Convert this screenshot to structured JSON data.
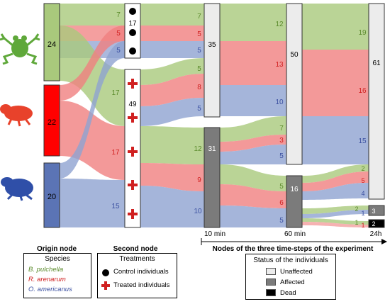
{
  "colors": {
    "green": "#a9c97c",
    "red": "#f07f7f",
    "blue": "#8fa2d1",
    "green_node": "#a9c97c",
    "red_node": "#ff0000",
    "blue_node": "#5b74b5",
    "unaffected": "#ececec",
    "affected": "#7b7b7b",
    "dead": "#000000",
    "green_text": "#5a8a2a",
    "red_text": "#d02020",
    "blue_text": "#3a4fa0"
  },
  "origin_nodes": [
    {
      "label": "24",
      "species": "green"
    },
    {
      "label": "22",
      "species": "red"
    },
    {
      "label": "20",
      "species": "blue"
    }
  ],
  "second_nodes": {
    "control_total": "17",
    "treated_total": "49",
    "control_flows": [
      "7",
      "5",
      "5"
    ],
    "treated_flows": [
      "17",
      "17",
      "15"
    ]
  },
  "time_nodes": {
    "t10_unaffected": "35",
    "t10_affected": "31",
    "t60_unaffected": "50",
    "t60_affected": "16",
    "t24_unaffected": "61",
    "t24_affected": "3",
    "t24_dead": "2"
  },
  "flow_labels": {
    "t10_in_control": [
      "7",
      "5",
      "5"
    ],
    "t10_in_treated": [
      "5",
      "8",
      "5",
      "12",
      "9",
      "10"
    ],
    "t60_in_unaff": [
      "12",
      "13",
      "10",
      "7",
      "3",
      "5"
    ],
    "t60_in_aff": [
      "5",
      "6",
      "5"
    ],
    "t24_in_unaff": [
      "19",
      "16",
      "15",
      "2",
      "5",
      "4"
    ],
    "t24_in_small": [
      "2",
      "1",
      "1",
      "1"
    ]
  },
  "time_labels": [
    "10 min",
    "60 min",
    "24h"
  ],
  "axis_label": "Nodes of the three time-steps of the experiment",
  "legend": {
    "origin_title": "Origin node",
    "species_header": "Species",
    "species": [
      "B. pulchella",
      "R. arenarum",
      "O. americanus"
    ],
    "second_title": "Second node",
    "treatments_header": "Treatments",
    "treatments": [
      "Control individuals",
      "Treated individuals"
    ],
    "status_header": "Status of the individuals",
    "statuses": [
      "Unaffected",
      "Affected",
      "Dead"
    ]
  },
  "icons": [
    "frog-icon",
    "toad-icon",
    "toad-icon"
  ]
}
